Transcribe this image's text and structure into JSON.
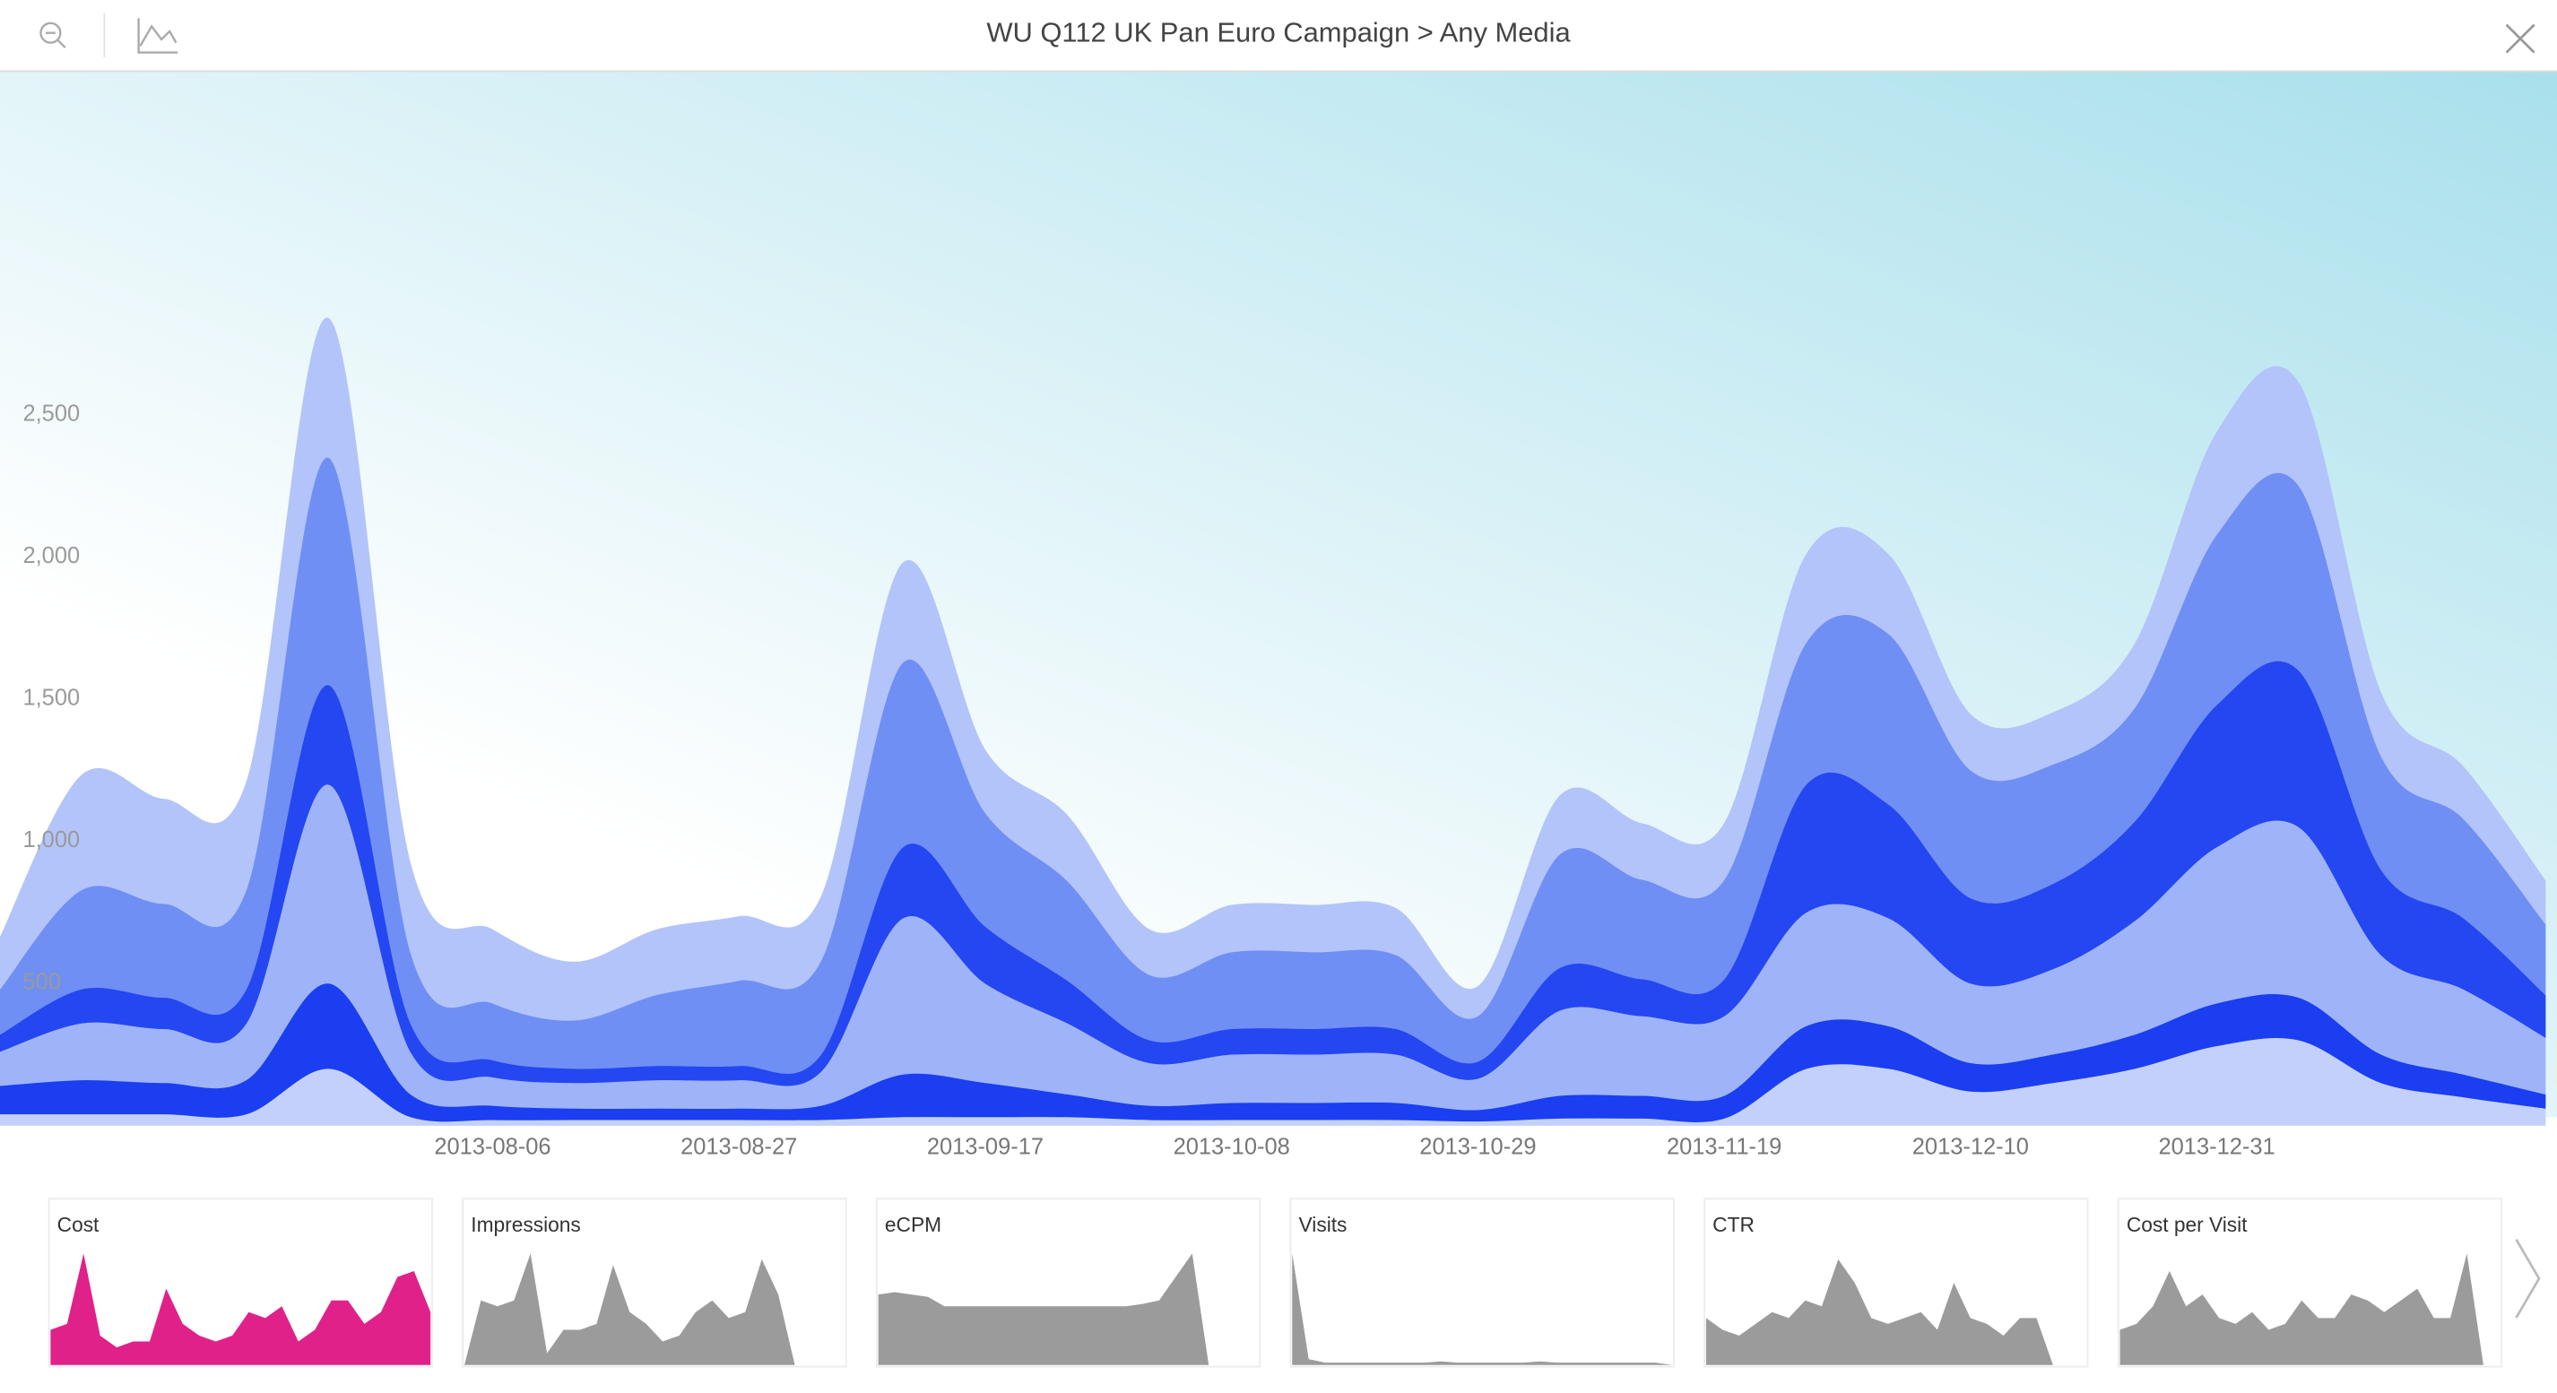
{
  "header": {
    "title": "WU Q112 UK Pan Euro Campaign > Any Media"
  },
  "chart_data": [
    {
      "type": "stacked-area",
      "x": [
        "2013-06-25",
        "2013-07-02",
        "2013-07-09",
        "2013-07-16",
        "2013-07-23",
        "2013-07-30",
        "2013-08-06",
        "2013-08-13",
        "2013-08-20",
        "2013-08-27",
        "2013-09-03",
        "2013-09-10",
        "2013-09-17",
        "2013-09-24",
        "2013-10-01",
        "2013-10-08",
        "2013-10-15",
        "2013-10-22",
        "2013-10-29",
        "2013-11-05",
        "2013-11-12",
        "2013-11-19",
        "2013-11-26",
        "2013-12-03",
        "2013-12-10",
        "2013-12-17",
        "2013-12-24",
        "2013-12-31",
        "2014-01-07",
        "2014-01-14",
        "2014-01-21",
        "2014-01-28"
      ],
      "xlim": [
        "2013-06-25",
        "2014-01-29"
      ],
      "xticks": [
        "2013-08-06",
        "2013-08-27",
        "2013-09-17",
        "2013-10-08",
        "2013-10-29",
        "2013-11-19",
        "2013-12-10",
        "2013-12-31"
      ],
      "ylim": [
        0,
        3700
      ],
      "yticks": [
        500,
        {
          "value": 1000,
          "label": "1,000"
        },
        {
          "value": 1500,
          "label": "1,500"
        },
        {
          "value": 2000,
          "label": "2,000"
        },
        {
          "value": 2500,
          "label": "2,500"
        }
      ],
      "series": [
        {
          "color": "#c3d0fb",
          "values": [
            40,
            40,
            40,
            40,
            200,
            30,
            20,
            20,
            20,
            20,
            20,
            30,
            30,
            30,
            20,
            20,
            20,
            20,
            15,
            25,
            25,
            25,
            200,
            200,
            120,
            150,
            200,
            280,
            300,
            150,
            100,
            60
          ]
        },
        {
          "color": "#1a3ef0",
          "values": [
            100,
            120,
            110,
            120,
            300,
            80,
            50,
            40,
            40,
            40,
            50,
            150,
            120,
            80,
            50,
            60,
            60,
            60,
            40,
            80,
            80,
            80,
            150,
            150,
            100,
            100,
            120,
            150,
            150,
            100,
            80,
            50
          ]
        },
        {
          "color": "#9fb4f8",
          "values": [
            120,
            200,
            190,
            200,
            700,
            150,
            100,
            90,
            100,
            100,
            120,
            550,
            350,
            250,
            150,
            170,
            170,
            170,
            110,
            300,
            280,
            280,
            400,
            380,
            280,
            300,
            400,
            550,
            600,
            350,
            300,
            200
          ]
        },
        {
          "color": "#2447f1",
          "values": [
            60,
            120,
            110,
            120,
            350,
            100,
            60,
            50,
            50,
            50,
            60,
            250,
            200,
            150,
            80,
            90,
            90,
            90,
            60,
            150,
            130,
            130,
            450,
            400,
            300,
            300,
            350,
            500,
            550,
            300,
            250,
            150
          ]
        },
        {
          "color": "#6f8ff4",
          "values": [
            160,
            350,
            330,
            350,
            800,
            250,
            200,
            170,
            250,
            300,
            330,
            650,
            400,
            350,
            230,
            270,
            270,
            260,
            160,
            400,
            350,
            350,
            500,
            600,
            450,
            420,
            400,
            600,
            650,
            400,
            350,
            250
          ]
        },
        {
          "color": "#b3c4fa",
          "values": [
            180,
            403,
            367,
            375,
            489,
            308,
            258,
            204,
            228,
            224,
            223,
            349,
            219,
            230,
            158,
            164,
            164,
            163,
            103,
            204,
            196,
            196,
            308,
            278,
            195,
            181,
            222,
            358,
            360,
            220,
            182,
            150
          ]
        }
      ]
    },
    {
      "type": "area",
      "title": "Cost",
      "color": "#e0218a",
      "ylim": [
        0,
        100
      ],
      "values": [
        30,
        35,
        95,
        25,
        15,
        20,
        20,
        65,
        35,
        25,
        20,
        25,
        45,
        40,
        50,
        20,
        30,
        55,
        55,
        35,
        45,
        75,
        80,
        45
      ]
    },
    {
      "type": "area",
      "title": "Impressions",
      "color": "#9b9b9b",
      "ylim": [
        0,
        100
      ],
      "values": [
        0,
        55,
        50,
        55,
        95,
        10,
        30,
        30,
        35,
        85,
        45,
        35,
        20,
        25,
        45,
        55,
        40,
        45,
        90,
        60,
        0,
        0,
        0,
        0
      ]
    },
    {
      "type": "area",
      "title": "eCPM",
      "color": "#9b9b9b",
      "ylim": [
        0,
        100
      ],
      "values": [
        60,
        62,
        60,
        58,
        50,
        50,
        50,
        50,
        50,
        50,
        50,
        50,
        50,
        50,
        50,
        50,
        52,
        55,
        75,
        95,
        0,
        0,
        0,
        0
      ]
    },
    {
      "type": "area",
      "title": "Visits",
      "color": "#9b9b9b",
      "ylim": [
        0,
        100
      ],
      "values": [
        95,
        5,
        2,
        2,
        2,
        2,
        2,
        2,
        2,
        3,
        2,
        2,
        2,
        2,
        2,
        3,
        2,
        2,
        2,
        2,
        2,
        2,
        2,
        0
      ]
    },
    {
      "type": "area",
      "title": "CTR",
      "color": "#9b9b9b",
      "ylim": [
        0,
        100
      ],
      "values": [
        40,
        30,
        25,
        35,
        45,
        40,
        55,
        50,
        90,
        70,
        40,
        35,
        40,
        45,
        30,
        70,
        40,
        35,
        25,
        40,
        40,
        0,
        0,
        0
      ]
    },
    {
      "type": "area",
      "title": "Cost per Visit",
      "color": "#9b9b9b",
      "ylim": [
        0,
        100
      ],
      "values": [
        30,
        35,
        50,
        80,
        50,
        60,
        40,
        35,
        45,
        30,
        35,
        55,
        40,
        40,
        60,
        55,
        45,
        55,
        65,
        40,
        40,
        95,
        0,
        0
      ]
    }
  ]
}
